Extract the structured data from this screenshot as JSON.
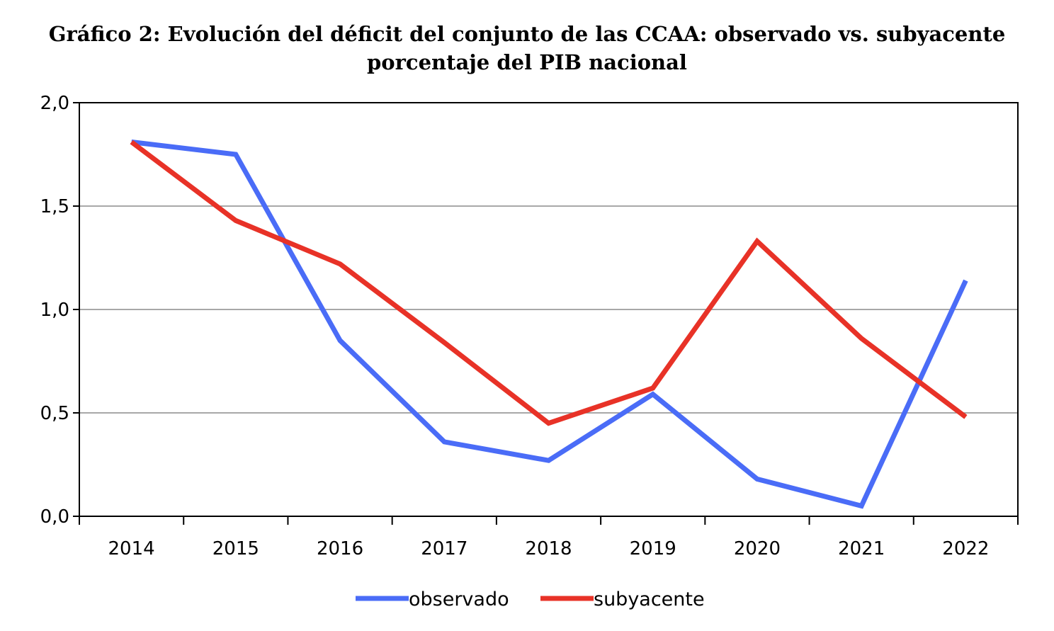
{
  "chart_data": {
    "type": "line",
    "title": "Gráfico 2: Evolución del déficit del conjunto de las CCAA: observado vs. subyacente",
    "subtitle": "porcentaje del PIB nacional",
    "xlabel": "",
    "ylabel": "",
    "categories": [
      "2014",
      "2015",
      "2016",
      "2017",
      "2018",
      "2019",
      "2020",
      "2021",
      "2022"
    ],
    "ylim": [
      0,
      2
    ],
    "yticks": [
      0,
      0.5,
      1,
      1.5,
      2
    ],
    "ytick_labels": [
      "0,0",
      "0,5",
      "1,0",
      "1,5",
      "2,0"
    ],
    "grid": true,
    "legend_position": "bottom",
    "series": [
      {
        "name": "observado",
        "color": "#4a6cf7",
        "values": [
          1.81,
          1.75,
          0.85,
          0.36,
          0.27,
          0.59,
          0.18,
          0.05,
          1.14
        ]
      },
      {
        "name": "subyacente",
        "color": "#e83227",
        "values": [
          1.81,
          1.43,
          1.22,
          0.84,
          0.45,
          0.62,
          1.33,
          0.86,
          0.48
        ]
      }
    ]
  }
}
